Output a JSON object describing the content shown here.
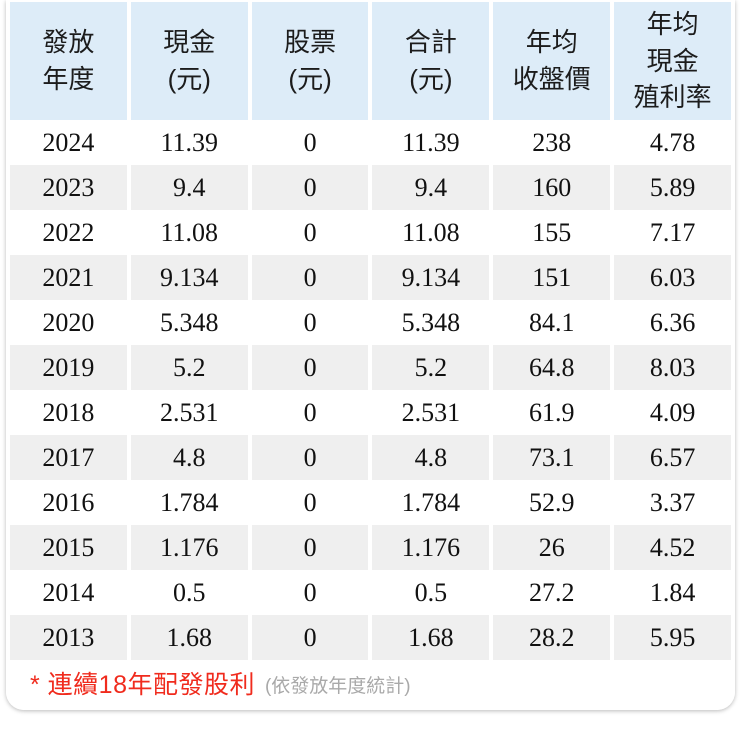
{
  "table": {
    "columns": [
      {
        "id": "year",
        "label": "發放\n年度"
      },
      {
        "id": "cash",
        "label": "現金\n(元)"
      },
      {
        "id": "stock",
        "label": "股票\n(元)"
      },
      {
        "id": "total",
        "label": "合計\n(元)"
      },
      {
        "id": "avg_close",
        "label": "年均\n收盤價"
      },
      {
        "id": "cash_yield",
        "label": "年均\n現金\n殖利率"
      }
    ],
    "rows": [
      {
        "year": "2024",
        "cash": "11.39",
        "stock": "0",
        "total": "11.39",
        "avg_close": "238",
        "cash_yield": "4.78"
      },
      {
        "year": "2023",
        "cash": "9.4",
        "stock": "0",
        "total": "9.4",
        "avg_close": "160",
        "cash_yield": "5.89"
      },
      {
        "year": "2022",
        "cash": "11.08",
        "stock": "0",
        "total": "11.08",
        "avg_close": "155",
        "cash_yield": "7.17"
      },
      {
        "year": "2021",
        "cash": "9.134",
        "stock": "0",
        "total": "9.134",
        "avg_close": "151",
        "cash_yield": "6.03"
      },
      {
        "year": "2020",
        "cash": "5.348",
        "stock": "0",
        "total": "5.348",
        "avg_close": "84.1",
        "cash_yield": "6.36"
      },
      {
        "year": "2019",
        "cash": "5.2",
        "stock": "0",
        "total": "5.2",
        "avg_close": "64.8",
        "cash_yield": "8.03"
      },
      {
        "year": "2018",
        "cash": "2.531",
        "stock": "0",
        "total": "2.531",
        "avg_close": "61.9",
        "cash_yield": "4.09"
      },
      {
        "year": "2017",
        "cash": "4.8",
        "stock": "0",
        "total": "4.8",
        "avg_close": "73.1",
        "cash_yield": "6.57"
      },
      {
        "year": "2016",
        "cash": "1.784",
        "stock": "0",
        "total": "1.784",
        "avg_close": "52.9",
        "cash_yield": "3.37"
      },
      {
        "year": "2015",
        "cash": "1.176",
        "stock": "0",
        "total": "1.176",
        "avg_close": "26",
        "cash_yield": "4.52"
      },
      {
        "year": "2014",
        "cash": "0.5",
        "stock": "0",
        "total": "0.5",
        "avg_close": "27.2",
        "cash_yield": "1.84"
      },
      {
        "year": "2013",
        "cash": "1.68",
        "stock": "0",
        "total": "1.68",
        "avg_close": "28.2",
        "cash_yield": "5.95"
      }
    ]
  },
  "footnote": {
    "main": "* 連續18年配發股利",
    "note": "(依發放年度統計)"
  },
  "colors": {
    "header_bg": "#ddecf8",
    "row_alt_bg": "#efefef",
    "footnote_red": "#f02b1d",
    "footnote_gray": "#a9a9a9"
  }
}
